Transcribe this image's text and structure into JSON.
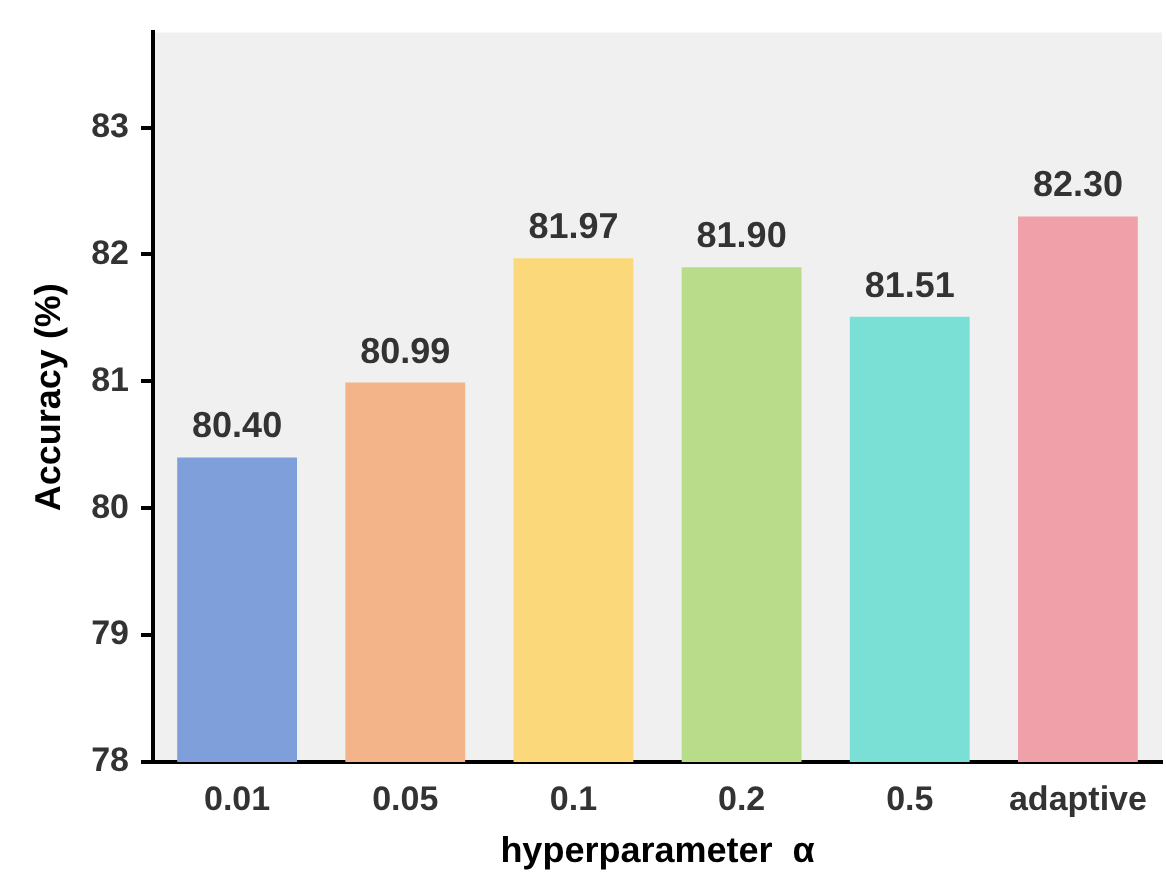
{
  "chart_data": {
    "type": "bar",
    "xlabel": "hyperparameter  α",
    "ylabel": "Accuracy (%)",
    "categories": [
      "0.01",
      "0.05",
      "0.1",
      "0.2",
      "0.5",
      "adaptive"
    ],
    "values": [
      80.4,
      80.99,
      81.97,
      81.9,
      81.51,
      82.3
    ],
    "colors": [
      "#7f9fdb",
      "#f4b48a",
      "#fbd97a",
      "#b8dc8a",
      "#7adfd5",
      "#f0a0a8"
    ],
    "value_labels": [
      "80.40",
      "80.99",
      "81.97",
      "81.90",
      "81.51",
      "82.30"
    ],
    "ylim": [
      78,
      83.75
    ],
    "yticks": [
      78,
      79,
      80,
      81,
      82,
      83
    ],
    "grid": false,
    "legend": false
  }
}
